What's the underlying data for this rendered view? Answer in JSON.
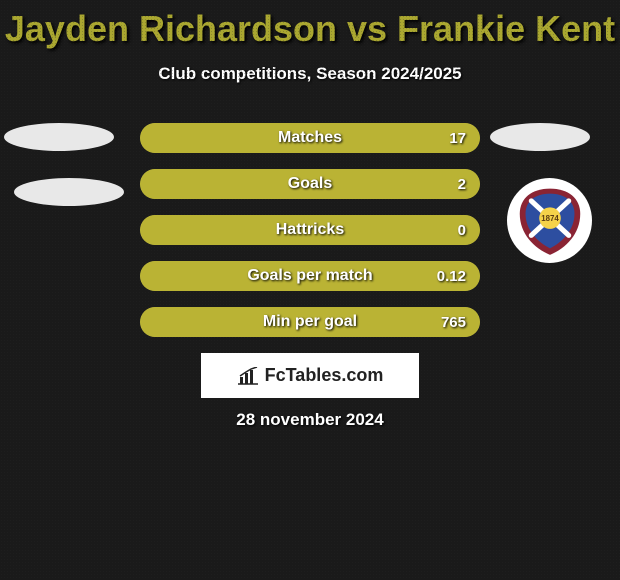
{
  "title_color": "#aaa730",
  "title": "Jayden Richardson vs Frankie Kent",
  "subtitle": "Club competitions, Season 2024/2025",
  "bar_bg": "#aaa63e",
  "bar_fill": "#bab334",
  "stats": [
    {
      "label": "Matches",
      "value": "17",
      "fill_pct": 100
    },
    {
      "label": "Goals",
      "value": "2",
      "fill_pct": 100
    },
    {
      "label": "Hattricks",
      "value": "0",
      "fill_pct": 100
    },
    {
      "label": "Goals per match",
      "value": "0.12",
      "fill_pct": 100
    },
    {
      "label": "Min per goal",
      "value": "765",
      "fill_pct": 100
    }
  ],
  "blob_color": "#e8e8e8",
  "crest": {
    "outer": "#8a2434",
    "inner": "#2d4ea0",
    "saltire": "#ffffff",
    "year": "1874",
    "year_color": "#f5d24a"
  },
  "footer_brand": "FcTables.com",
  "date": "28 november 2024"
}
